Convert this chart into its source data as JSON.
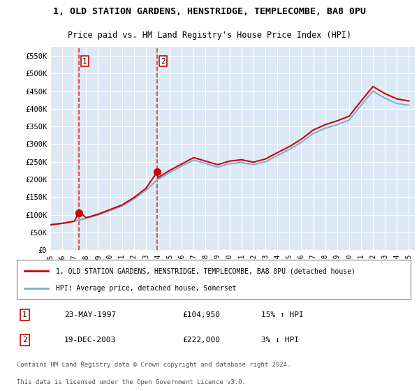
{
  "title": "1, OLD STATION GARDENS, HENSTRIDGE, TEMPLECOMBE, BA8 0PU",
  "subtitle": "Price paid vs. HM Land Registry's House Price Index (HPI)",
  "legend_line1": "1, OLD STATION GARDENS, HENSTRIDGE, TEMPLECOMBE, BA8 0PU (detached house)",
  "legend_line2": "HPI: Average price, detached house, Somerset",
  "footnote1": "Contains HM Land Registry data © Crown copyright and database right 2024.",
  "footnote2": "This data is licensed under the Open Government Licence v3.0.",
  "transaction1_label": "1",
  "transaction1_date": "23-MAY-1997",
  "transaction1_price": "£104,950",
  "transaction1_hpi": "15% ↑ HPI",
  "transaction1_year": 1997.39,
  "transaction1_value": 104950,
  "transaction2_label": "2",
  "transaction2_date": "19-DEC-2003",
  "transaction2_price": "£222,000",
  "transaction2_hpi": "3% ↓ HPI",
  "transaction2_year": 2003.96,
  "transaction2_value": 222000,
  "ylabel_ticks": [
    "£0",
    "£50K",
    "£100K",
    "£150K",
    "£200K",
    "£250K",
    "£300K",
    "£350K",
    "£400K",
    "£450K",
    "£500K",
    "£550K"
  ],
  "ylim": [
    0,
    575000
  ],
  "xlim_start": 1995,
  "xlim_end": 2025.5,
  "background_color": "#dce9f5",
  "plot_bg_color": "#dce9f5",
  "grid_color": "#ffffff",
  "hpi_line_color": "#7bafd4",
  "price_line_color": "#cc0000",
  "vline_color": "#cc0000",
  "hpi_years": [
    1995,
    1996,
    1997,
    1998,
    1999,
    2000,
    2001,
    2002,
    2003,
    2004,
    2005,
    2006,
    2007,
    2008,
    2009,
    2010,
    2011,
    2012,
    2013,
    2014,
    2015,
    2016,
    2017,
    2018,
    2019,
    2020,
    2021,
    2022,
    2023,
    2024,
    2025
  ],
  "hpi_values": [
    72000,
    76000,
    82000,
    90000,
    100000,
    112000,
    125000,
    145000,
    170000,
    200000,
    220000,
    238000,
    255000,
    245000,
    235000,
    245000,
    248000,
    242000,
    250000,
    268000,
    285000,
    305000,
    330000,
    345000,
    355000,
    368000,
    410000,
    450000,
    430000,
    415000,
    410000
  ],
  "price_line_years": [
    1995,
    1996,
    1997,
    1997.39,
    1997.5,
    1998,
    1999,
    2000,
    2001,
    2002,
    2003,
    2003.96,
    2004,
    2005,
    2006,
    2007,
    2008,
    2009,
    2010,
    2011,
    2012,
    2013,
    2014,
    2015,
    2016,
    2017,
    2018,
    2019,
    2020,
    2021,
    2022,
    2023,
    2024,
    2025
  ],
  "price_line_values": [
    72000,
    76000,
    82000,
    104950,
    107000,
    92000,
    102000,
    115000,
    128000,
    149000,
    175000,
    222000,
    205000,
    226000,
    244000,
    262000,
    252000,
    242000,
    252000,
    256000,
    249000,
    258000,
    276000,
    293000,
    314000,
    340000,
    355000,
    366000,
    379000,
    422000,
    463000,
    443000,
    428000,
    422000
  ]
}
